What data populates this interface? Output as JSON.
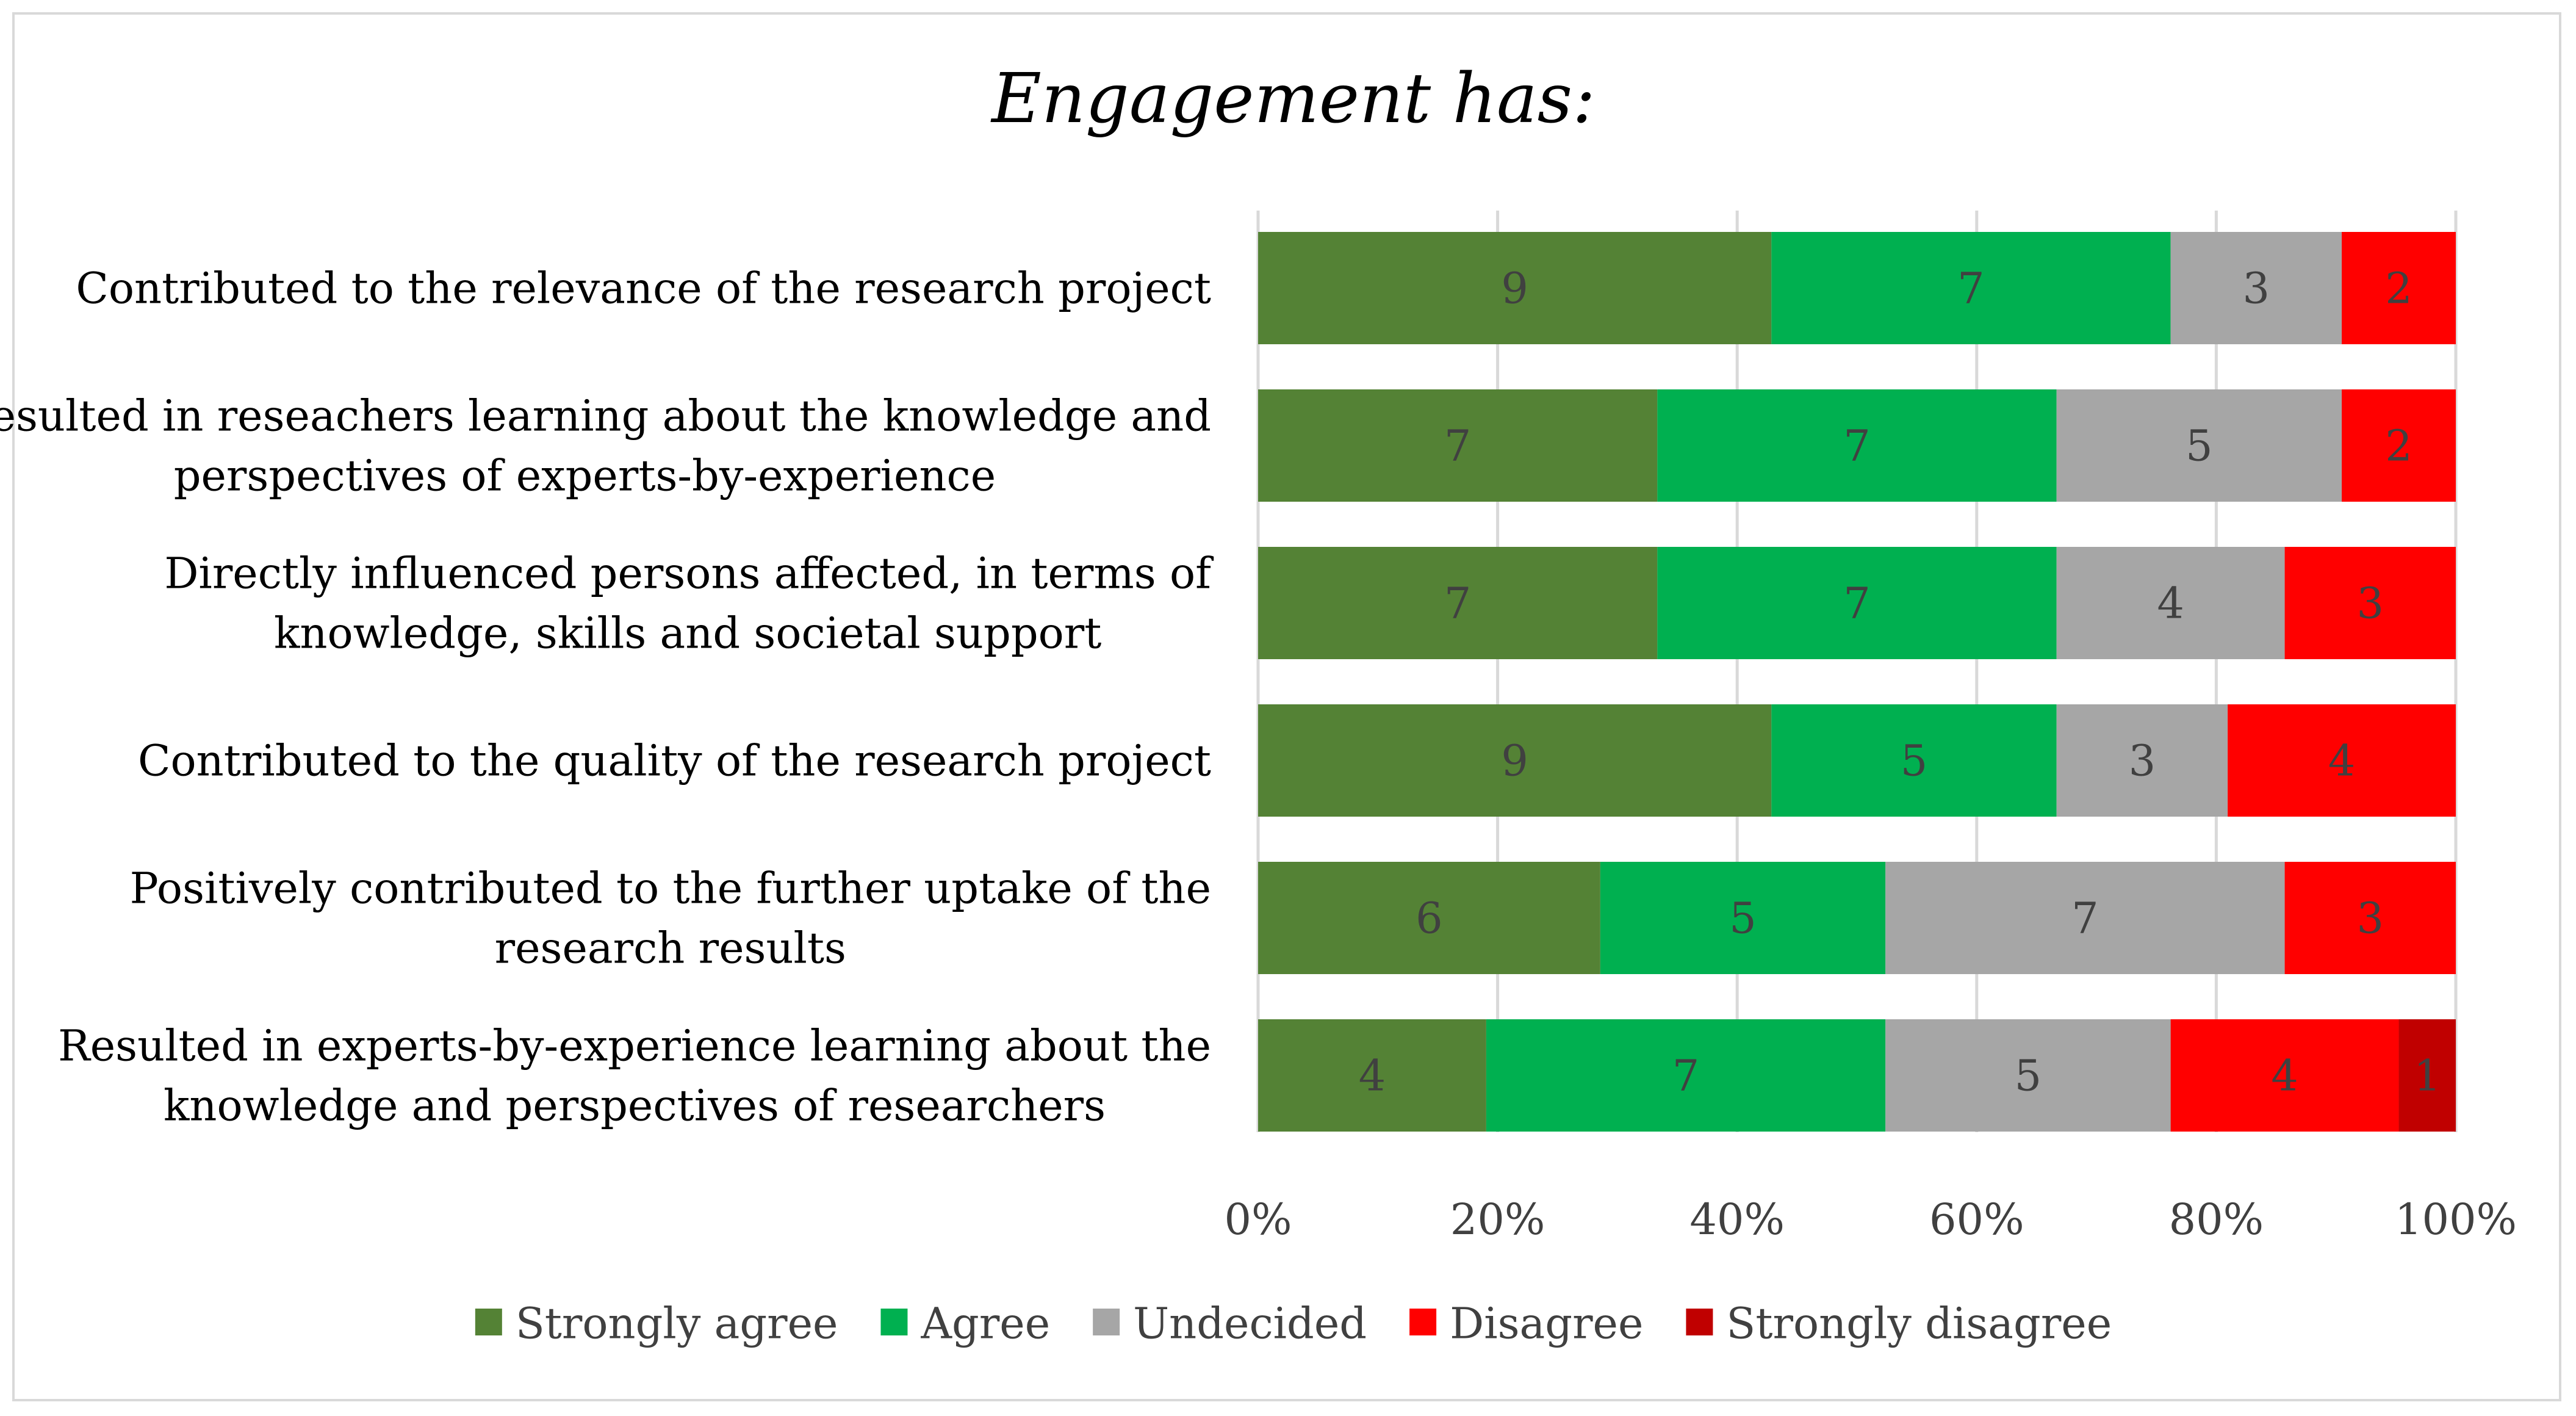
{
  "chart_data": {
    "type": "bar",
    "orientation": "horizontal",
    "stacked": "percent",
    "title": "Engagement has:",
    "categories": [
      "Contributed to the relevance of the research project",
      "Resulted in reseachers learning about the knowledge and perspectives of experts-by-experience",
      "Directly influenced persons affected, in terms of knowledge, skills and societal support",
      "Contributed to the quality of the research project",
      "Positively contributed to the further uptake of the research results",
      "Resulted in experts-by-experience learning about the knowledge and perspectives of researchers"
    ],
    "category_label_lines": [
      [
        "Contributed to the relevance of the research project"
      ],
      [
        "Resulted in reseachers learning about the knowledge and",
        "perspectives of experts-by-experience"
      ],
      [
        "Directly influenced persons affected, in terms of",
        "knowledge, skills and societal support"
      ],
      [
        "Contributed to the quality of the research project"
      ],
      [
        "Positively contributed to the further uptake of the",
        "research results"
      ],
      [
        "Resulted in experts-by-experience learning about the",
        "knowledge and perspectives of researchers"
      ]
    ],
    "series": [
      {
        "name": "Strongly agree",
        "color": "#548235",
        "values": [
          9,
          7,
          7,
          9,
          6,
          4
        ]
      },
      {
        "name": "Agree",
        "color": "#00b050",
        "values": [
          7,
          7,
          7,
          5,
          5,
          7
        ]
      },
      {
        "name": "Undecided",
        "color": "#a6a6a6",
        "values": [
          3,
          5,
          4,
          3,
          7,
          5
        ]
      },
      {
        "name": "Disagree",
        "color": "#ff0000",
        "values": [
          2,
          2,
          3,
          4,
          3,
          4
        ]
      },
      {
        "name": "Strongly disagree",
        "color": "#c00000",
        "values": [
          0,
          0,
          0,
          0,
          0,
          1
        ]
      }
    ],
    "xlim": [
      0,
      100
    ],
    "x_ticks": [
      "0%",
      "20%",
      "40%",
      "60%",
      "80%",
      "100%"
    ],
    "grid": true,
    "legend": "bottom",
    "xlabel": "",
    "ylabel": ""
  }
}
